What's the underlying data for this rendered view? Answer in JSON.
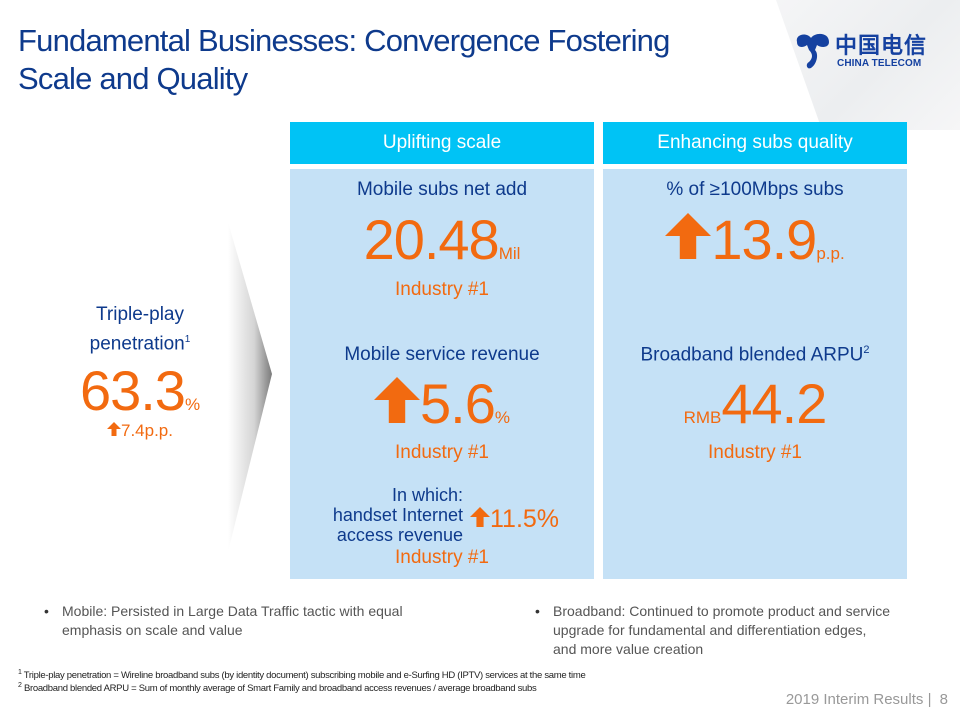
{
  "title": {
    "line1": "Fundamental Businesses: Convergence Fostering",
    "line2": "Scale and Quality"
  },
  "logo": {
    "chinese": "中国电信",
    "english": "CHINA TELECOM"
  },
  "colors": {
    "navy": "#0e3a8c",
    "orange": "#f26a10",
    "header_cyan": "#00c3f5",
    "panel_blue": "#c5e1f6"
  },
  "left": {
    "label_line1": "Triple-play",
    "label_line2": "penetration",
    "label_sup": "1",
    "value": "63.3",
    "unit": "%",
    "change_icon": "up-arrow-icon",
    "change": "7.4p.p."
  },
  "columns": [
    {
      "header": "Uplifting scale",
      "metrics": [
        {
          "label": "Mobile subs net add",
          "value": "20.48",
          "unit": "Mil",
          "note": "Industry #1"
        },
        {
          "label": "Mobile service revenue",
          "icon": "up-arrow-icon",
          "value": "5.6",
          "unit": "%",
          "note": "Industry #1"
        }
      ],
      "sub": {
        "line1": "In which:",
        "line2": "handset Internet",
        "line3": "access revenue",
        "icon": "up-arrow-icon",
        "value": "11.5%",
        "note": "Industry #1"
      }
    },
    {
      "header": "Enhancing subs quality",
      "metrics": [
        {
          "label": "% of ≥100Mbps subs",
          "icon": "up-arrow-icon",
          "value": "13.9",
          "unit": "p.p."
        },
        {
          "label": "Broadband blended ARPU",
          "label_sup": "2",
          "prefix": "RMB",
          "value": "44.2",
          "note": "Industry #1"
        }
      ]
    }
  ],
  "bullets": [
    {
      "line1": "Mobile: Persisted in Large Data Traffic tactic with equal",
      "line2": "emphasis on scale and value"
    },
    {
      "line1": "Broadband: Continued to promote product and service",
      "line2": "upgrade for fundamental and differentiation edges,",
      "line3": "and more value creation"
    }
  ],
  "bullet_char": "•",
  "footnotes": [
    {
      "mark": "1",
      "text": "Triple-play penetration = Wireline broadband subs (by identity document) subscribing mobile and e-Surfing HD (IPTV) services at the same time"
    },
    {
      "mark": "2",
      "text": "Broadband blended ARPU = Sum of monthly average of Smart Family and broadband access revenues / average broadband subs"
    }
  ],
  "footer": {
    "text": "2019 Interim Results",
    "separator": "|",
    "page": "8"
  }
}
